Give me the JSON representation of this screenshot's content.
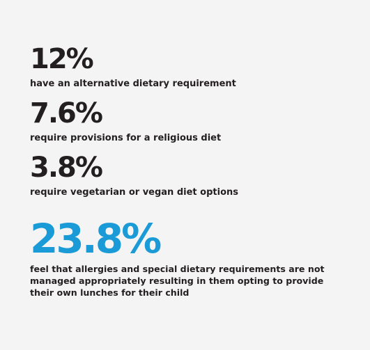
{
  "colors": {
    "background": "#f4f4f4",
    "text": "#231f20",
    "highlight": "#1a9ad6"
  },
  "stats": [
    {
      "value": "12%",
      "description": "have an alternative dietary requirement"
    },
    {
      "value": "7.6%",
      "description": "require provisions for a religious diet"
    },
    {
      "value": "3.8%",
      "description": "require vegetarian or vegan diet options"
    },
    {
      "value": "23.8%",
      "description_lines": [
        "feel that allergies and special dietary requirements are not",
        "managed appropriately resulting in them opting to provide",
        "their own lunches for their child"
      ]
    }
  ]
}
